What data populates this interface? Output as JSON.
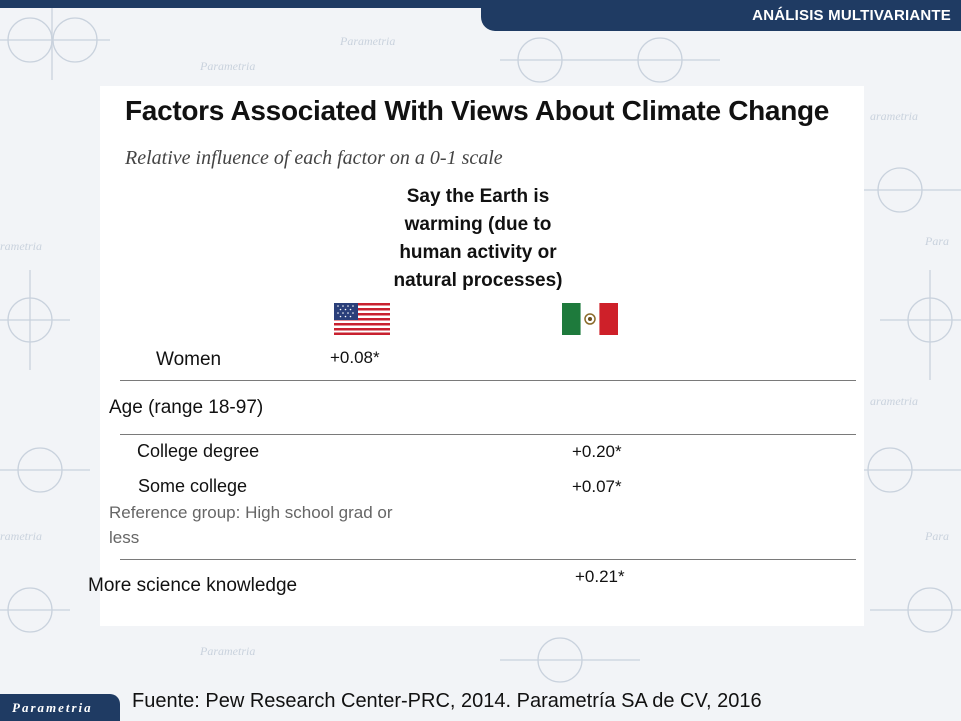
{
  "header": {
    "section_label": "ANÁLISIS MULTIVARIANTE"
  },
  "slide": {
    "title": "Factors Associated With Views About Climate Change",
    "subtitle": "Relative influence of each factor on a 0-1 scale",
    "column_header": [
      "Say the Earth is",
      "warming (due to",
      "human activity or",
      "natural processes)"
    ],
    "flags": [
      {
        "country": "United States",
        "icon": "us-flag-icon"
      },
      {
        "country": "Mexico",
        "icon": "mexico-flag-icon"
      }
    ],
    "rows": {
      "women": {
        "label": "Women",
        "us_value": "+0.08*",
        "mx_value": ""
      },
      "age": {
        "label": "Age (range 18-97)"
      },
      "college_degree": {
        "label": "College degree",
        "us_value": "",
        "mx_value": "+0.20*"
      },
      "some_college": {
        "label": "Some college",
        "us_value": "",
        "mx_value": "+0.07*"
      },
      "reference_group": [
        "Reference group: High school grad or",
        "less"
      ],
      "science_knowledge": {
        "label": "More science knowledge",
        "us_value": "",
        "mx_value": "+0.21*"
      }
    }
  },
  "footer": {
    "logo_text": "Parametria",
    "source": "Fuente: Pew Research Center-PRC, 2014. Parametría SA de CV, 2016"
  },
  "colors": {
    "brand_navy": "#1f3b63",
    "background": "#f2f4f7",
    "watermark": "#c9d2dd"
  }
}
